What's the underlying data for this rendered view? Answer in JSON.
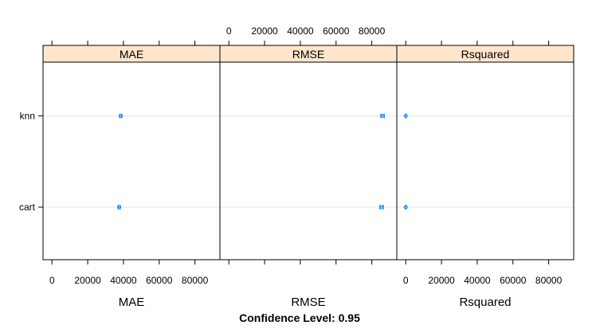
{
  "chart_data": {
    "type": "scatter",
    "title": "",
    "xlabels": [
      "MAE",
      "RMSE",
      "Rsquared"
    ],
    "footer": "Confidence Level: 0.95",
    "xlim": [
      -5000,
      94000
    ],
    "x_ticks": [
      0,
      20000,
      40000,
      60000,
      80000
    ],
    "categories": [
      "cart",
      "knn"
    ],
    "panels": [
      {
        "name": "MAE",
        "points": [
          {
            "category": "knn",
            "estimate": 38500,
            "lower": 37900,
            "upper": 39100
          },
          {
            "category": "cart",
            "estimate": 37600,
            "lower": 37000,
            "upper": 38200
          }
        ]
      },
      {
        "name": "RMSE",
        "points": [
          {
            "category": "knn",
            "estimate": 86000,
            "lower": 85000,
            "upper": 87000
          },
          {
            "category": "cart",
            "estimate": 85500,
            "lower": 84500,
            "upper": 86500
          }
        ]
      },
      {
        "name": "Rsquared",
        "points": [
          {
            "category": "knn",
            "estimate": 0.47,
            "lower": 0.45,
            "upper": 0.49
          },
          {
            "category": "cart",
            "estimate": 0.48,
            "lower": 0.46,
            "upper": 0.5
          }
        ]
      }
    ],
    "colors": {
      "strip": "#FFE5CC",
      "points": "#0080FF",
      "reference_line": "#E6E6E6",
      "frame": "#000000"
    },
    "grid": false
  }
}
